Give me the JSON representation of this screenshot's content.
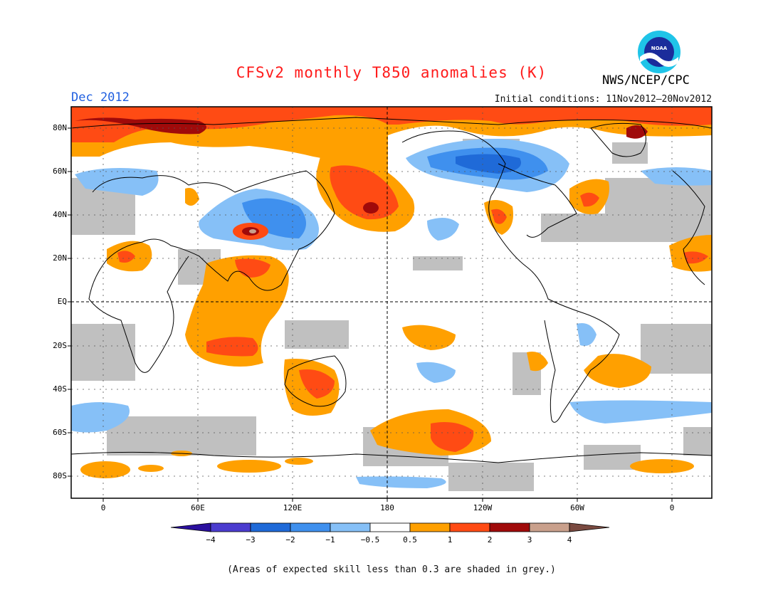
{
  "header": {
    "title": "CFSv2 monthly T850 anomalies (K)",
    "month": "Dec 2012",
    "initial_conditions": "Initial conditions: 11Nov2012–20Nov2012",
    "agency": "NWS/NCEP/CPC",
    "logo_text": "NOAA"
  },
  "map": {
    "lat_labels": [
      "80N",
      "60N",
      "40N",
      "20N",
      "EQ",
      "20S",
      "40S",
      "60S",
      "80S"
    ],
    "lon_labels": [
      "0",
      "60E",
      "120E",
      "180",
      "120W",
      "60W",
      "0"
    ]
  },
  "colorbar": {
    "labels": [
      "−4",
      "−3",
      "−2",
      "−1",
      "−0.5",
      "0.5",
      "1",
      "2",
      "3",
      "4"
    ],
    "colors": [
      "#2a0f9e",
      "#4b3ccf",
      "#1f6ad8",
      "#3f90ee",
      "#86c0f7",
      "#ffffff",
      "#ffa000",
      "#ff4b14",
      "#a00a0a",
      "#c9a08c",
      "#7a4a40"
    ]
  },
  "footer": {
    "note": "(Areas of expected skill less than 0.3 are shaded in grey.)"
  }
}
